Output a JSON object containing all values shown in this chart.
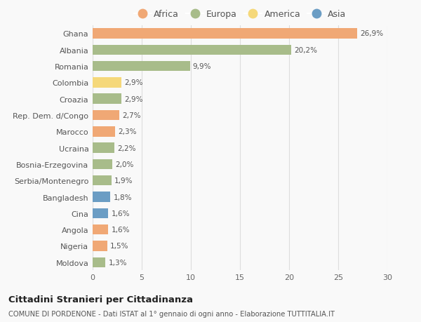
{
  "categories": [
    "Ghana",
    "Albania",
    "Romania",
    "Colombia",
    "Croazia",
    "Rep. Dem. d/Congo",
    "Marocco",
    "Ucraina",
    "Bosnia-Erzegovina",
    "Serbia/Montenegro",
    "Bangladesh",
    "Cina",
    "Angola",
    "Nigeria",
    "Moldova"
  ],
  "values": [
    26.9,
    20.2,
    9.9,
    2.9,
    2.9,
    2.7,
    2.3,
    2.2,
    2.0,
    1.9,
    1.8,
    1.6,
    1.6,
    1.5,
    1.3
  ],
  "labels": [
    "26,9%",
    "20,2%",
    "9,9%",
    "2,9%",
    "2,9%",
    "2,7%",
    "2,3%",
    "2,2%",
    "2,0%",
    "1,9%",
    "1,8%",
    "1,6%",
    "1,6%",
    "1,5%",
    "1,3%"
  ],
  "continents": [
    "Africa",
    "Europa",
    "Europa",
    "America",
    "Europa",
    "Africa",
    "Africa",
    "Europa",
    "Europa",
    "Europa",
    "Asia",
    "Asia",
    "Africa",
    "Africa",
    "Europa"
  ],
  "colors": {
    "Africa": "#F0A875",
    "Europa": "#A8BC8A",
    "America": "#F5D87A",
    "Asia": "#6B9DC4"
  },
  "legend_order": [
    "Africa",
    "Europa",
    "America",
    "Asia"
  ],
  "title1": "Cittadini Stranieri per Cittadinanza",
  "title2": "COMUNE DI PORDENONE - Dati ISTAT al 1° gennaio di ogni anno - Elaborazione TUTTITALIA.IT",
  "xlim": [
    0,
    30
  ],
  "xticks": [
    0,
    5,
    10,
    15,
    20,
    25,
    30
  ],
  "background_color": "#f9f9f9",
  "grid_color": "#dddddd"
}
